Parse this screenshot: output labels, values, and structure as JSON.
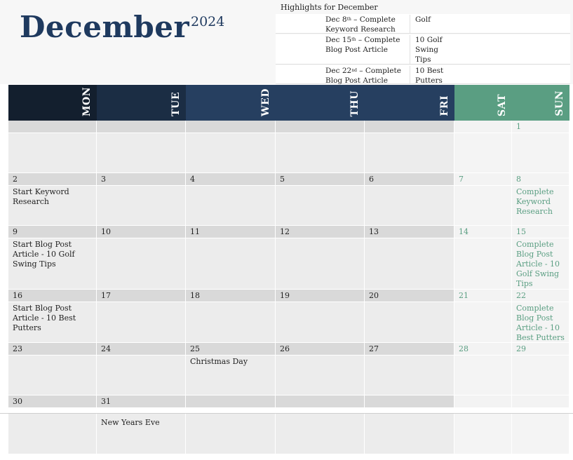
{
  "header": {
    "month": "December",
    "year": "2024",
    "highlights_title": "Highlights for December"
  },
  "highlights": [
    {
      "date": "Dec 8",
      "ordinal": "th",
      "task": "– Complete Keyword Research",
      "topic": "Golf"
    },
    {
      "date": "Dec 15",
      "ordinal": "th",
      "task": "– Complete Blog Post Article",
      "topic": "10 Golf Swing Tips"
    },
    {
      "date": "Dec 22",
      "ordinal": "nd",
      "task": "– Complete Blog Post Article",
      "topic": "10 Best Putters"
    }
  ],
  "weekdays": [
    "MON",
    "TUE",
    "WED",
    "THU",
    "FRI",
    "SAT",
    "SUN"
  ],
  "weeks": [
    [
      null,
      null,
      null,
      null,
      null,
      null,
      {
        "date": 1
      }
    ],
    [
      {
        "date": 2,
        "note": "Start Keyword Research"
      },
      {
        "date": 3
      },
      {
        "date": 4
      },
      {
        "date": 5
      },
      {
        "date": 6
      },
      {
        "date": 7
      },
      {
        "date": 8,
        "note": "Complete Keyword Research"
      }
    ],
    [
      {
        "date": 9,
        "note": "Start Blog Post Article - 10 Golf Swing Tips"
      },
      {
        "date": 10
      },
      {
        "date": 11
      },
      {
        "date": 12
      },
      {
        "date": 13
      },
      {
        "date": 14
      },
      {
        "date": 15,
        "note": "Complete Blog Post Article - 10 Golf Swing Tips"
      }
    ],
    [
      {
        "date": 16,
        "note": "Start Blog Post Article - 10 Best Putters"
      },
      {
        "date": 17
      },
      {
        "date": 18
      },
      {
        "date": 19
      },
      {
        "date": 20
      },
      {
        "date": 21
      },
      {
        "date": 22,
        "note": "Complete Blog Post Article - 10 Best Putters"
      }
    ],
    [
      {
        "date": 23
      },
      {
        "date": 24
      },
      {
        "date": 25,
        "note": "Christmas Day"
      },
      {
        "date": 26
      },
      {
        "date": 27
      },
      {
        "date": 28
      },
      {
        "date": 29
      }
    ],
    [
      {
        "date": 30
      },
      {
        "date": 31,
        "note": "New Years Eve"
      },
      null,
      null,
      null,
      null,
      null
    ]
  ]
}
